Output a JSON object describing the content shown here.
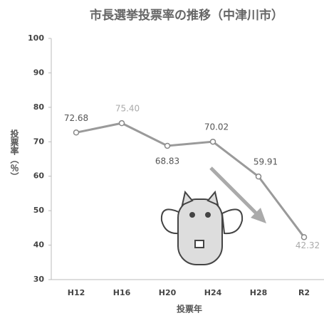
{
  "chart_data": {
    "type": "line",
    "title": "市長選挙投票率の推移（中津川市）",
    "x_label": "投票年",
    "y_label": "投票率（％）",
    "categories": [
      "H12",
      "H16",
      "H20",
      "H24",
      "H28",
      "R2"
    ],
    "values": [
      72.68,
      75.4,
      68.83,
      70.02,
      59.91,
      42.32
    ],
    "value_labels": [
      "72.68",
      "75.40",
      "68.83",
      "70.02",
      "59.91",
      "42.32"
    ],
    "value_label_colors": [
      "#555555",
      "#aaaaaa",
      "#555555",
      "#555555",
      "#555555",
      "#aaaaaa"
    ],
    "color": "#9a9a9a",
    "ylim": [
      30,
      100
    ],
    "yticks": [
      30,
      40,
      50,
      60,
      70,
      80,
      90,
      100
    ],
    "grid": false
  }
}
